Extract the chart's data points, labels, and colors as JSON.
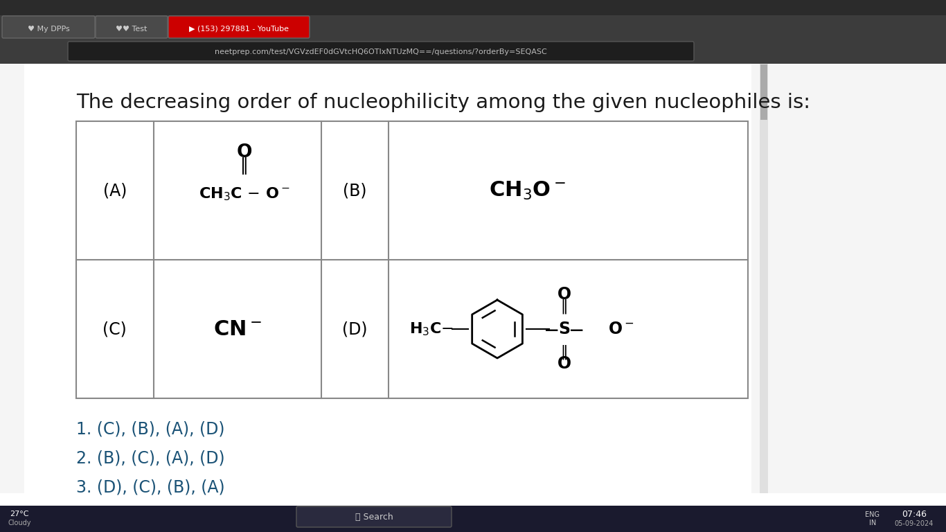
{
  "title": "The decreasing order of nucleophilicity among the given nucleophiles is:",
  "title_fontsize": 21,
  "title_color": "#1a1a1a",
  "background_color": "#ffffff",
  "content_bg": "#f0f0f0",
  "table_border_color": "#999999",
  "options": [
    "1. (C), (B), (A), (D)",
    "2. (B), (C), (A), (D)",
    "3. (D), (C), (B), (A)"
  ],
  "options_color": "#1a5276",
  "options_fontsize": 17,
  "browser_bar_color": "#2d2d2d",
  "browser_tab_color": "#3c3c3c",
  "taskbar_color": "#1e1e1e"
}
